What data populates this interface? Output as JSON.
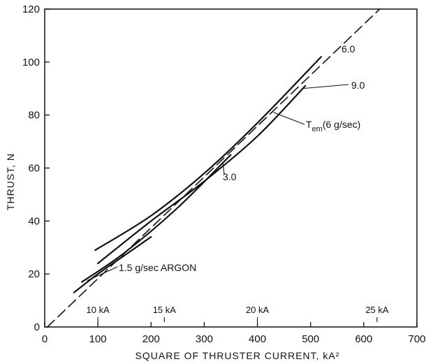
{
  "chart_data": {
    "type": "line",
    "xlabel": "SQUARE OF THRUSTER CURRENT, kA²",
    "ylabel": "THRUST, N",
    "xlim": [
      0,
      700
    ],
    "ylim": [
      0,
      120
    ],
    "x_ticks": [
      0,
      100,
      200,
      300,
      400,
      500,
      600,
      700
    ],
    "y_ticks": [
      0,
      20,
      40,
      60,
      80,
      100,
      120
    ],
    "grid": false,
    "top_ticks": [
      {
        "value": 100,
        "label": "10 kA"
      },
      {
        "value": 225,
        "label": "15 kA"
      },
      {
        "value": 400,
        "label": "20 kA"
      },
      {
        "value": 625,
        "label": "25 kA"
      }
    ],
    "series": [
      {
        "name": "6.0",
        "style": "solid",
        "x": [
          95,
          200,
          300,
          400,
          520
        ],
        "y": [
          29,
          42,
          58,
          77,
          102
        ]
      },
      {
        "name": "9.0",
        "style": "solid",
        "x": [
          100,
          200,
          300,
          400,
          490
        ],
        "y": [
          24,
          40,
          55,
          72,
          91
        ]
      },
      {
        "name": "3.0",
        "style": "solid",
        "x": [
          70,
          150,
          250,
          350
        ],
        "y": [
          17,
          28,
          45,
          65
        ]
      },
      {
        "name": "1.5 g/sec ARGON",
        "style": "solid",
        "x": [
          55,
          100,
          150,
          200
        ],
        "y": [
          13,
          20,
          27,
          34
        ]
      },
      {
        "name": "T_em (6 g/sec)",
        "style": "dashed",
        "x": [
          5,
          630
        ],
        "y": [
          0,
          120
        ]
      }
    ],
    "annotations": [
      {
        "text": "6.0",
        "series": 0
      },
      {
        "text": "9.0",
        "series": 1
      },
      {
        "text": "3.0",
        "series": 2
      },
      {
        "text": "1.5 g/sec ARGON",
        "series": 3
      },
      {
        "text_main": "T",
        "text_sub": "em",
        "text_rest": "(6 g/sec)",
        "series": 4
      }
    ]
  }
}
